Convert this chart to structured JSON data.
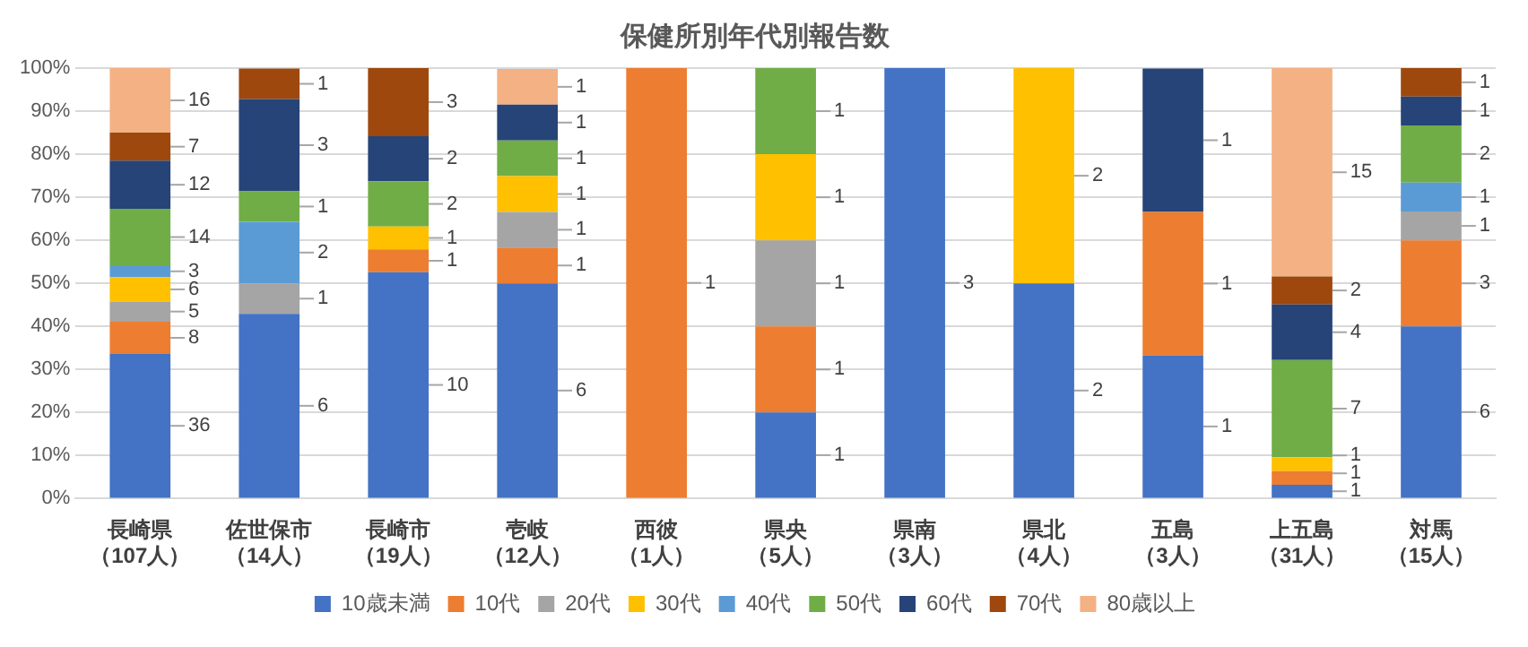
{
  "chart_data": {
    "type": "bar",
    "stacked": true,
    "title": "保健所別年代別報告数",
    "categories": [
      "長崎県（107人）",
      "佐世保市（14人）",
      "長崎市（19人）",
      "壱岐（12人）",
      "西彼（1人）",
      "県央（5人）",
      "県南（3人）",
      "県北（4人）",
      "五島（3人）",
      "上五島（31人）",
      "対馬（15人）"
    ],
    "ylim": [
      0,
      100
    ],
    "yticks": [
      {
        "value": 0,
        "label": "0%"
      },
      {
        "value": 10,
        "label": "10%"
      },
      {
        "value": 20,
        "label": "20%"
      },
      {
        "value": 30,
        "label": "30%"
      },
      {
        "value": 40,
        "label": "40%"
      },
      {
        "value": 50,
        "label": "50%"
      },
      {
        "value": 60,
        "label": "60%"
      },
      {
        "value": 70,
        "label": "70%"
      },
      {
        "value": 80,
        "label": "80%"
      },
      {
        "value": 90,
        "label": "90%"
      },
      {
        "value": 100,
        "label": "100%"
      }
    ],
    "grid": "y",
    "legend": "bottom",
    "series": [
      {
        "name": "10歳未満",
        "color": "#4472c4",
        "values": [
          33.6,
          42.9,
          52.6,
          50,
          null,
          20,
          100,
          50,
          33.3,
          3.2,
          40
        ]
      },
      {
        "name": "10代",
        "color": "#ed7d31",
        "values": [
          7.5,
          null,
          5.3,
          8.3,
          100,
          20,
          null,
          null,
          33.3,
          3.2,
          20
        ]
      },
      {
        "name": "20代",
        "color": "#a5a5a5",
        "values": [
          4.7,
          7.1,
          null,
          8.3,
          null,
          20,
          null,
          null,
          null,
          null,
          6.7
        ]
      },
      {
        "name": "30代",
        "color": "#ffc000",
        "values": [
          5.6,
          null,
          5.3,
          8.3,
          null,
          20,
          null,
          50,
          null,
          3.2,
          null
        ]
      },
      {
        "name": "40代",
        "color": "#5b9bd5",
        "values": [
          2.8,
          14.3,
          null,
          null,
          null,
          null,
          null,
          null,
          null,
          null,
          6.7
        ]
      },
      {
        "name": "50代",
        "color": "#70ad47",
        "values": [
          13.1,
          7.1,
          10.5,
          8.3,
          null,
          20,
          null,
          null,
          null,
          22.6,
          13.3
        ]
      },
      {
        "name": "60代",
        "color": "#264478",
        "values": [
          11.2,
          21.4,
          10.5,
          8.3,
          null,
          null,
          null,
          null,
          33.3,
          12.9,
          6.7
        ]
      },
      {
        "name": "70代",
        "color": "#9e480e",
        "values": [
          6.5,
          7.1,
          15.8,
          null,
          null,
          null,
          null,
          null,
          null,
          6.5,
          6.6
        ]
      },
      {
        "name": "80歳以上",
        "color": "#f4b183",
        "values": [
          15.0,
          null,
          null,
          8.3,
          null,
          null,
          null,
          null,
          null,
          48.4,
          null
        ]
      }
    ],
    "annotations": [
      "36",
      "8",
      "5",
      "6",
      "3",
      "14",
      "12",
      "7",
      "16",
      "6",
      "1",
      "2",
      "1",
      "3",
      "1",
      "10",
      "1",
      "1",
      "2",
      "2",
      "3",
      "6",
      "1",
      "1",
      "1",
      "1",
      "1",
      "1",
      "1",
      "1",
      "1",
      "1",
      "1",
      "1",
      "3",
      "2",
      "2",
      "1",
      "1",
      "1",
      "1",
      "1",
      "1",
      "7",
      "4",
      "2",
      "15",
      "6",
      "3",
      "1",
      "1",
      "2",
      "1",
      "1"
    ]
  }
}
